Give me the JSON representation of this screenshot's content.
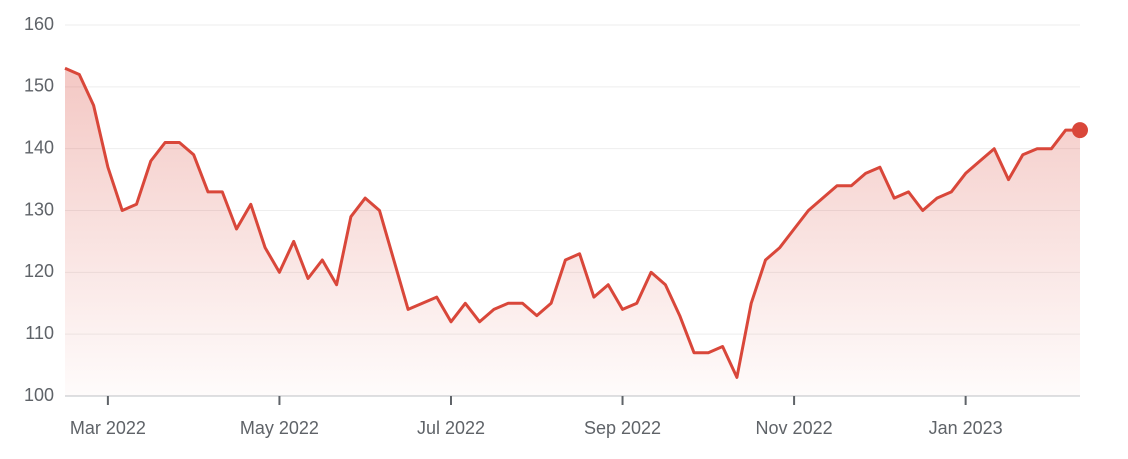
{
  "chart_data": {
    "type": "line",
    "categories": [
      null,
      null,
      null,
      "Mar 2022",
      null,
      null,
      null,
      null,
      null,
      null,
      null,
      null,
      null,
      null,
      null,
      "May 2022",
      null,
      null,
      null,
      null,
      null,
      null,
      null,
      null,
      null,
      null,
      null,
      "Jul 2022",
      null,
      null,
      null,
      null,
      null,
      null,
      null,
      null,
      null,
      null,
      null,
      "Sep 2022",
      null,
      null,
      null,
      null,
      null,
      null,
      null,
      null,
      null,
      null,
      null,
      "Nov 2022",
      null,
      null,
      null,
      null,
      null,
      null,
      null,
      null,
      null,
      null,
      null,
      "Jan 2023",
      null,
      null,
      null,
      null,
      null,
      null,
      null,
      null
    ],
    "values": [
      153,
      152,
      147,
      137,
      130,
      131,
      138,
      141,
      141,
      139,
      133,
      133,
      127,
      131,
      124,
      120,
      125,
      119,
      122,
      118,
      129,
      132,
      130,
      122,
      114,
      115,
      116,
      112,
      115,
      112,
      114,
      115,
      115,
      113,
      115,
      122,
      123,
      116,
      118,
      114,
      115,
      120,
      118,
      113,
      107,
      107,
      108,
      103,
      115,
      122,
      124,
      127,
      130,
      132,
      134,
      134,
      136,
      137,
      132,
      133,
      130,
      132,
      133,
      136,
      138,
      140,
      135,
      139,
      140,
      140,
      143,
      143
    ],
    "color": "#d9473a",
    "ylim": [
      100,
      160
    ],
    "yticks": [
      100,
      110,
      120,
      130,
      140,
      150,
      160
    ],
    "grid": true
  }
}
